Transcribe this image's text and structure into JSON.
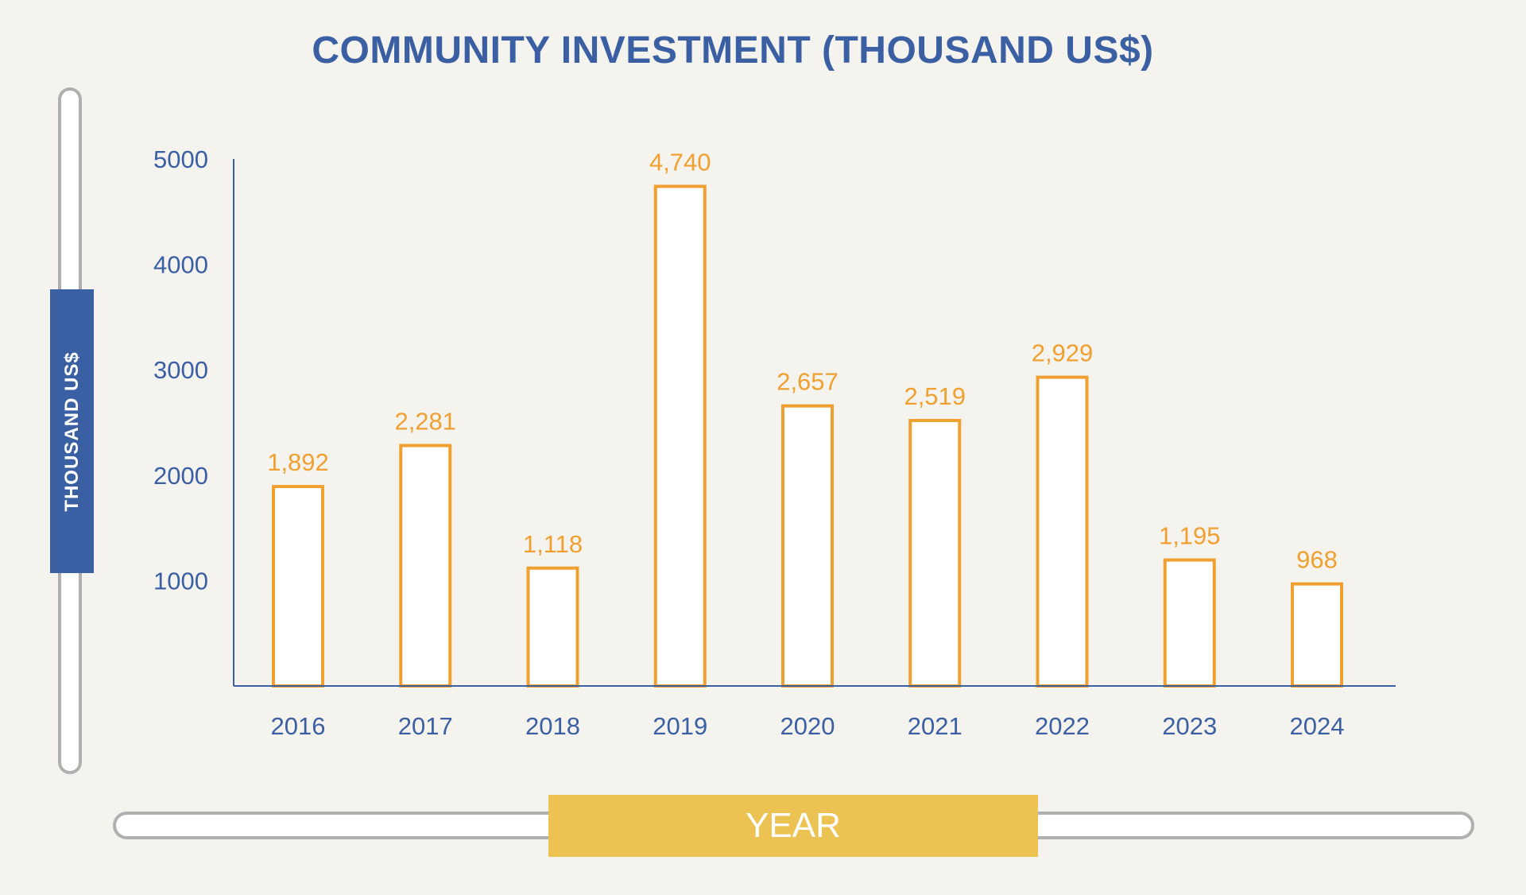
{
  "chart_data": {
    "type": "bar",
    "title": "COMMUNITY INVESTMENT (THOUSAND US$)",
    "xlabel": "YEAR",
    "ylabel": "THOUSAND US$",
    "categories": [
      "2016",
      "2017",
      "2018",
      "2019",
      "2020",
      "2021",
      "2022",
      "2023",
      "2024"
    ],
    "values": [
      1892,
      2281,
      1118,
      4740,
      2657,
      2519,
      2929,
      1195,
      968
    ],
    "data_labels": [
      "1,892",
      "2,281",
      "1,118",
      "4,740",
      "2,657",
      "2,519",
      "2,929",
      "1,195",
      "968"
    ],
    "yticks": [
      1000,
      2000,
      3000,
      4000,
      5000
    ],
    "ylim": [
      0,
      5000
    ],
    "grid": false,
    "legend": "none",
    "colors": {
      "bar_outline": "#f0a030",
      "bar_fill": "#ffffff",
      "axis": "#3a5fa3",
      "title": "#3a5fa3",
      "ylabel_badge": "#3a5fa3",
      "xlabel_badge": "#ecc352"
    }
  }
}
